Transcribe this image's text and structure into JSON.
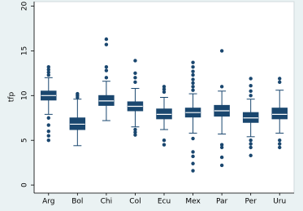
{
  "chart_data": {
    "type": "box",
    "y_label": "tfp",
    "categories": [
      "Arg",
      "Bol",
      "Chi",
      "Col",
      "Ecu",
      "Mex",
      "Par",
      "Per",
      "Uru"
    ],
    "color": "#1a476f",
    "median_color": "#ffffff",
    "ylim": [
      -0.9,
      20.5
    ],
    "yticks": [
      0,
      5,
      10,
      15,
      20
    ],
    "boxes": [
      {
        "low": 7.9,
        "q1": 9.5,
        "median": 10.0,
        "q3": 10.5,
        "high": 12.0,
        "outliers": [
          13.2,
          12.9,
          12.6,
          12.3,
          7.5,
          6.7,
          6.0,
          5.5,
          5.0
        ]
      },
      {
        "low": 4.4,
        "q1": 6.2,
        "median": 6.8,
        "q3": 7.5,
        "high": 9.6,
        "outliers": [
          10.2,
          10.0,
          9.8
        ]
      },
      {
        "low": 7.2,
        "q1": 8.9,
        "median": 9.4,
        "q3": 10.0,
        "high": 11.6,
        "outliers": [
          16.3,
          15.7,
          13.2,
          12.8,
          12.0
        ]
      },
      {
        "low": 6.5,
        "q1": 8.3,
        "median": 8.8,
        "q3": 9.3,
        "high": 10.8,
        "outliers": [
          13.9,
          12.5,
          12.0,
          11.5,
          6.2,
          5.9,
          5.6
        ]
      },
      {
        "low": 6.2,
        "q1": 7.4,
        "median": 7.9,
        "q3": 8.5,
        "high": 9.8,
        "outliers": [
          11.0,
          10.7,
          10.4,
          5.0,
          4.5
        ]
      },
      {
        "low": 5.8,
        "q1": 7.6,
        "median": 8.1,
        "q3": 8.6,
        "high": 10.2,
        "outliers": [
          13.7,
          13.2,
          12.7,
          12.3,
          11.8,
          11.4,
          11.0,
          10.6,
          5.2,
          3.7,
          3.2,
          2.4,
          1.6
        ]
      },
      {
        "low": 5.7,
        "q1": 7.7,
        "median": 8.3,
        "q3": 8.9,
        "high": 10.5,
        "outliers": [
          15.0,
          11.0,
          4.5,
          4.2,
          3.1,
          2.2
        ]
      },
      {
        "low": 5.4,
        "q1": 7.0,
        "median": 7.5,
        "q3": 8.1,
        "high": 9.6,
        "outliers": [
          11.9,
          11.1,
          10.5,
          10.0,
          5.0,
          4.6,
          4.2,
          3.3
        ]
      },
      {
        "low": 5.8,
        "q1": 7.4,
        "median": 7.9,
        "q3": 8.6,
        "high": 10.6,
        "outliers": [
          11.9,
          11.5,
          5.0,
          4.6,
          4.2
        ]
      }
    ]
  }
}
